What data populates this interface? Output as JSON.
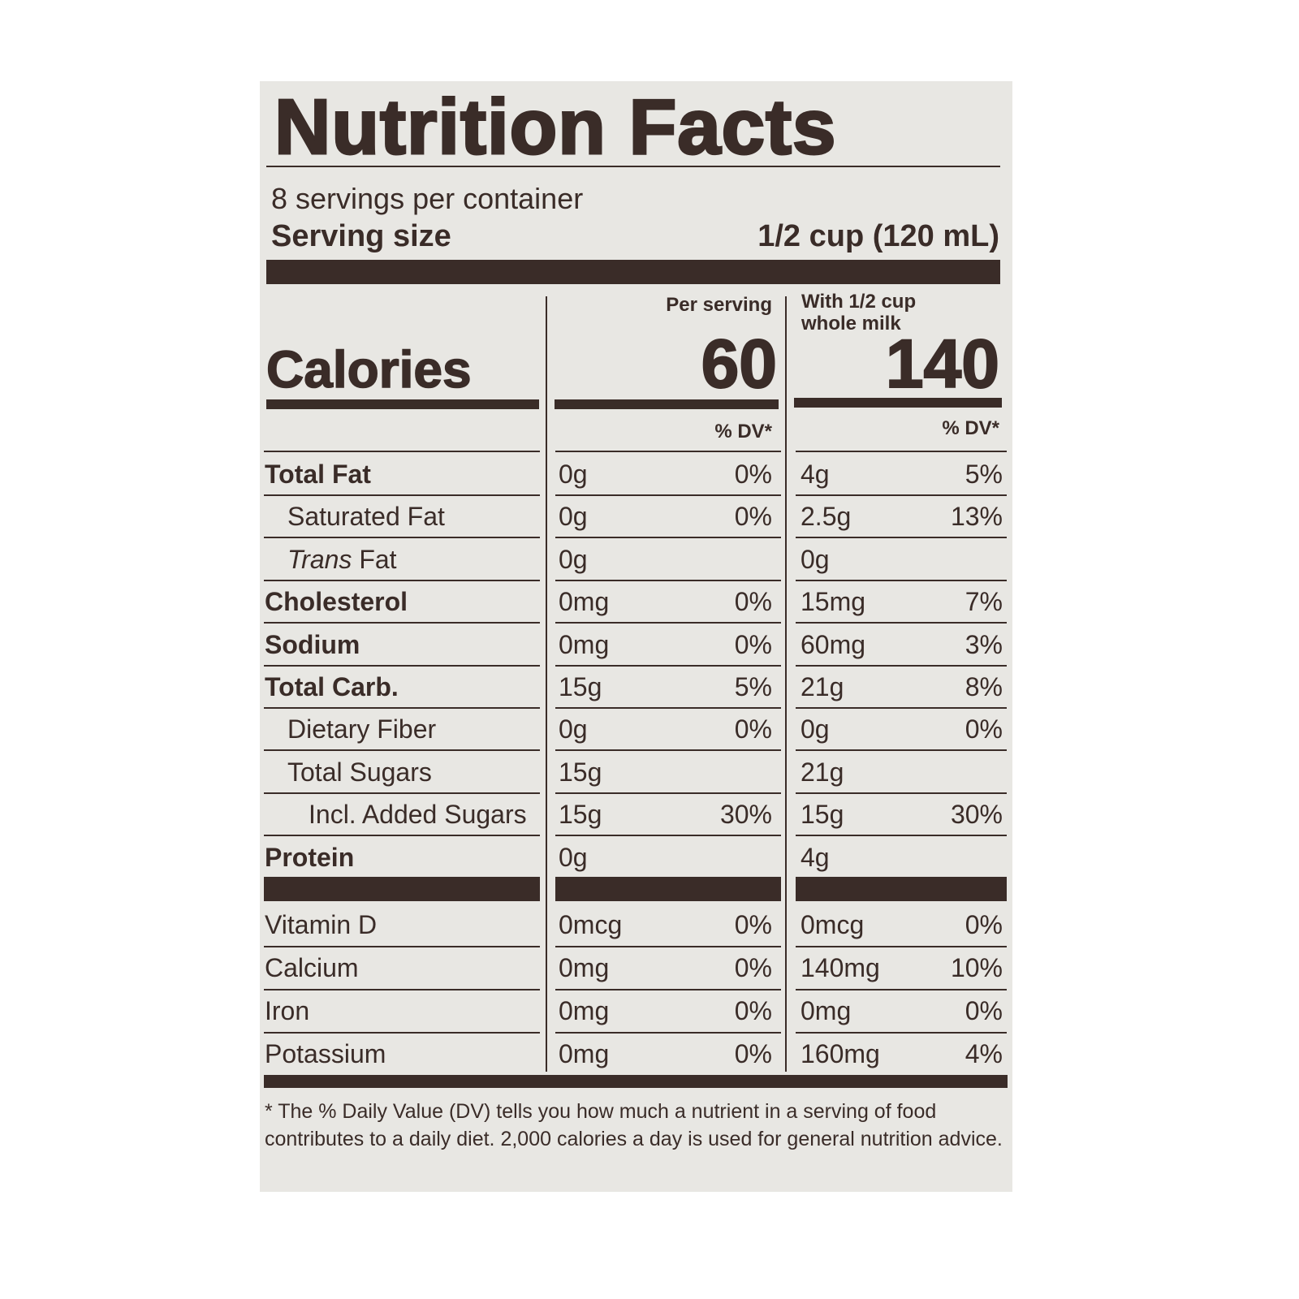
{
  "title": "Nutrition Facts",
  "servings_per_container": "8 servings per container",
  "serving_size_label": "Serving size",
  "serving_size_value": "1/2 cup (120 mL)",
  "calories_label": "Calories",
  "columns": [
    {
      "header": "Per serving",
      "calories": "60",
      "dv_header": "% DV*"
    },
    {
      "header_line1": "With 1/2 cup",
      "header_line2": "whole milk",
      "calories": "140",
      "dv_header": "% DV*"
    }
  ],
  "nutrients": [
    {
      "name": "Total Fat",
      "bold": true,
      "indent": 0,
      "c1_amt": "0g",
      "c1_dv": "0%",
      "c2_amt": "4g",
      "c2_dv": "5%"
    },
    {
      "name": "Saturated Fat",
      "bold": false,
      "indent": 1,
      "c1_amt": "0g",
      "c1_dv": "0%",
      "c2_amt": "2.5g",
      "c2_dv": "13%"
    },
    {
      "name_italic": "Trans",
      "name": " Fat",
      "bold": false,
      "indent": 1,
      "c1_amt": "0g",
      "c1_dv": "",
      "c2_amt": "0g",
      "c2_dv": ""
    },
    {
      "name": "Cholesterol",
      "bold": true,
      "indent": 0,
      "c1_amt": "0mg",
      "c1_dv": "0%",
      "c2_amt": "15mg",
      "c2_dv": "7%"
    },
    {
      "name": "Sodium",
      "bold": true,
      "indent": 0,
      "c1_amt": "0mg",
      "c1_dv": "0%",
      "c2_amt": "60mg",
      "c2_dv": "3%"
    },
    {
      "name": "Total Carb.",
      "bold": true,
      "indent": 0,
      "c1_amt": "15g",
      "c1_dv": "5%",
      "c2_amt": "21g",
      "c2_dv": "8%"
    },
    {
      "name": "Dietary Fiber",
      "bold": false,
      "indent": 1,
      "c1_amt": "0g",
      "c1_dv": "0%",
      "c2_amt": "0g",
      "c2_dv": "0%"
    },
    {
      "name": "Total Sugars",
      "bold": false,
      "indent": 1,
      "c1_amt": "15g",
      "c1_dv": "",
      "c2_amt": "21g",
      "c2_dv": ""
    },
    {
      "name": "Incl. Added Sugars",
      "bold": false,
      "indent": 2,
      "c1_amt": "15g",
      "c1_dv": "30%",
      "c2_amt": "15g",
      "c2_dv": "30%"
    },
    {
      "name": "Protein",
      "bold": true,
      "indent": 0,
      "c1_amt": "0g",
      "c1_dv": "",
      "c2_amt": "4g",
      "c2_dv": ""
    }
  ],
  "vitamins": [
    {
      "name": "Vitamin D",
      "c1_amt": "0mcg",
      "c1_dv": "0%",
      "c2_amt": "0mcg",
      "c2_dv": "0%"
    },
    {
      "name": "Calcium",
      "c1_amt": "0mg",
      "c1_dv": "0%",
      "c2_amt": "140mg",
      "c2_dv": "10%"
    },
    {
      "name": "Iron",
      "c1_amt": "0mg",
      "c1_dv": "0%",
      "c2_amt": "0mg",
      "c2_dv": "0%"
    },
    {
      "name": "Potassium",
      "c1_amt": "0mg",
      "c1_dv": "0%",
      "c2_amt": "160mg",
      "c2_dv": "4%"
    }
  ],
  "footnote": "* The % Daily Value (DV) tells you how much a nutrient in a serving of food contributes to a daily diet. 2,000 calories a day is used for general nutrition advice.",
  "colors": {
    "ink": "#3a2c28",
    "label_background": "#e8e7e3"
  }
}
